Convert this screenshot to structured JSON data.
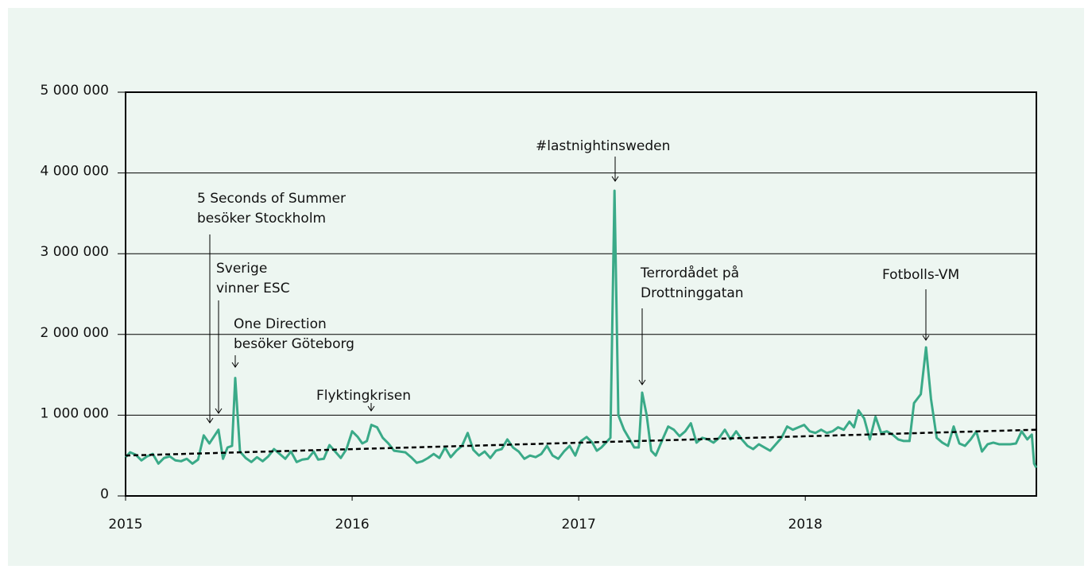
{
  "chart_data": {
    "type": "line",
    "x": [
      2015.0,
      2015.02,
      2015.045,
      2015.07,
      2015.095,
      2015.12,
      2015.145,
      2015.17,
      2015.195,
      2015.22,
      2015.245,
      2015.27,
      2015.295,
      2015.32,
      2015.345,
      2015.37,
      2015.41,
      2015.43,
      2015.45,
      2015.47,
      2015.484,
      2015.505,
      2015.53,
      2015.555,
      2015.58,
      2015.605,
      2015.63,
      2015.655,
      2015.68,
      2015.705,
      2015.73,
      2015.755,
      2015.78,
      2015.805,
      2015.83,
      2015.85,
      2015.875,
      2015.9,
      2015.925,
      2015.95,
      2015.975,
      2016.0,
      2016.025,
      2016.045,
      2016.065,
      2016.085,
      2016.11,
      2016.135,
      2016.16,
      2016.185,
      2016.21,
      2016.235,
      2016.26,
      2016.285,
      2016.31,
      2016.335,
      2016.36,
      2016.385,
      2016.41,
      2016.435,
      2016.46,
      2016.485,
      2016.51,
      2016.535,
      2016.56,
      2016.585,
      2016.61,
      2016.635,
      2016.66,
      2016.685,
      2016.71,
      2016.735,
      2016.76,
      2016.785,
      2016.81,
      2016.835,
      2016.86,
      2016.885,
      2016.91,
      2016.935,
      2016.96,
      2016.985,
      2017.01,
      2017.035,
      2017.06,
      2017.08,
      2017.1,
      2017.12,
      2017.14,
      2017.158,
      2017.175,
      2017.2,
      2017.225,
      2017.245,
      2017.265,
      2017.28,
      2017.3,
      2017.32,
      2017.34,
      2017.37,
      2017.395,
      2017.42,
      2017.445,
      2017.47,
      2017.495,
      2017.52,
      2017.545,
      2017.57,
      2017.595,
      2017.62,
      2017.645,
      2017.67,
      2017.695,
      2017.72,
      2017.745,
      2017.77,
      2017.795,
      2017.82,
      2017.845,
      2017.87,
      2017.895,
      2017.92,
      2017.945,
      2017.97,
      2017.995,
      2018.02,
      2018.045,
      2018.07,
      2018.095,
      2018.12,
      2018.145,
      2018.17,
      2018.195,
      2018.215,
      2018.235,
      2018.26,
      2018.285,
      2018.31,
      2018.335,
      2018.36,
      2018.385,
      2018.41,
      2018.435,
      2018.46,
      2018.48,
      2018.51,
      2018.533,
      2018.555,
      2018.58,
      2018.605,
      2018.63,
      2018.655,
      2018.68,
      2018.705,
      2018.73,
      2018.755,
      2018.78,
      2018.805,
      2018.83,
      2018.855,
      2018.88,
      2018.905,
      2018.93,
      2018.955,
      2018.98,
      2019.0,
      2019.01,
      2019.02
    ],
    "series": [
      {
        "color": "#3aaa88",
        "values": [
          480000,
          540000,
          510000,
          440000,
          490000,
          520000,
          400000,
          470000,
          490000,
          440000,
          430000,
          460000,
          400000,
          450000,
          750000,
          650000,
          820000,
          460000,
          600000,
          620000,
          1460000,
          550000,
          470000,
          420000,
          480000,
          430000,
          490000,
          580000,
          520000,
          460000,
          550000,
          420000,
          450000,
          460000,
          550000,
          450000,
          460000,
          630000,
          550000,
          470000,
          580000,
          800000,
          730000,
          650000,
          680000,
          880000,
          850000,
          720000,
          650000,
          560000,
          550000,
          540000,
          480000,
          410000,
          430000,
          470000,
          520000,
          470000,
          600000,
          480000,
          560000,
          620000,
          780000,
          570000,
          500000,
          550000,
          470000,
          560000,
          580000,
          700000,
          600000,
          550000,
          460000,
          500000,
          480000,
          520000,
          620000,
          500000,
          460000,
          550000,
          620000,
          500000,
          680000,
          730000,
          660000,
          560000,
          600000,
          660000,
          720000,
          3780000,
          1000000,
          820000,
          700000,
          600000,
          600000,
          1280000,
          1000000,
          560000,
          500000,
          700000,
          860000,
          820000,
          740000,
          800000,
          900000,
          660000,
          720000,
          700000,
          660000,
          720000,
          820000,
          700000,
          800000,
          700000,
          620000,
          580000,
          640000,
          600000,
          560000,
          640000,
          720000,
          860000,
          820000,
          850000,
          880000,
          800000,
          780000,
          820000,
          780000,
          800000,
          850000,
          820000,
          920000,
          850000,
          1060000,
          960000,
          700000,
          980000,
          780000,
          800000,
          760000,
          700000,
          680000,
          680000,
          1150000,
          1260000,
          1840000,
          1200000,
          720000,
          660000,
          620000,
          860000,
          650000,
          620000,
          700000,
          800000,
          550000,
          640000,
          660000,
          640000,
          640000,
          640000,
          650000,
          800000,
          700000,
          760000,
          400000,
          350000
        ]
      }
    ],
    "trend": {
      "x": [
        2015.0,
        2019.02
      ],
      "values": [
        500000,
        820000
      ]
    },
    "xlim": [
      2015.0,
      2019.02
    ],
    "xticks": [
      2015,
      2016,
      2017,
      2018
    ],
    "ylim": [
      0,
      5000000
    ],
    "yticks": [
      0,
      {
        "value": 1000000,
        "label": "1 000 000"
      },
      {
        "value": 2000000,
        "label": "2 000 000"
      },
      {
        "value": 3000000,
        "label": "3 000 000"
      },
      {
        "value": 4000000,
        "label": "4 000 000"
      },
      {
        "value": 5000000,
        "label": "5 000 000"
      }
    ],
    "grid": true,
    "annotations": [
      {
        "text": [
          "5 Seconds of Summer",
          "besöker Stockholm"
        ]
      },
      {
        "text": [
          "Sverige",
          "vinner ESC"
        ]
      },
      {
        "text": [
          "One Direction",
          "besöker Göteborg"
        ]
      },
      {
        "text": [
          "Flyktingkrisen"
        ]
      },
      {
        "text": [
          "#lastnightinsweden"
        ]
      },
      {
        "text": [
          "Terrordådet på",
          "Drottninggatan"
        ]
      },
      {
        "text": [
          "Fotbolls-VM"
        ]
      }
    ]
  }
}
